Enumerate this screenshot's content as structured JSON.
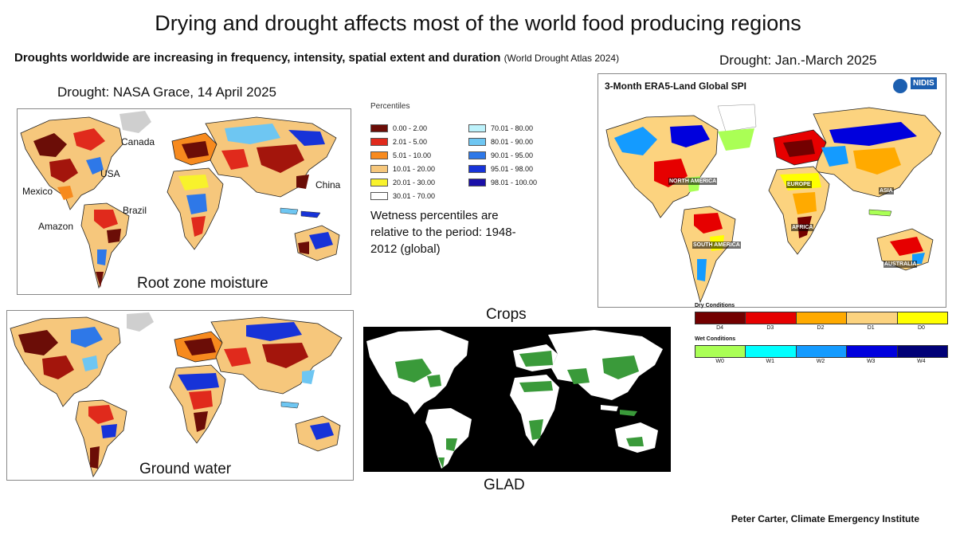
{
  "title": "Drying and drought affects most of the world food producing regions",
  "subtitle": {
    "main": "Droughts worldwide are increasing in frequency, intensity, spatial extent and duration",
    "source": "(World Drought Atlas 2024)"
  },
  "grace": {
    "heading": "Drought: NASA Grace, 14 April 2025",
    "root_zone_label": "Root zone moisture",
    "ground_water_label": "Ground water",
    "region_labels": [
      "Canada",
      "USA",
      "Mexico",
      "Brazil",
      "Amazon",
      "China"
    ],
    "legend": {
      "title": "Percentiles",
      "items": [
        {
          "range": "0.00 - 2.00",
          "color": "#6b0d07"
        },
        {
          "range": "2.01 - 5.00",
          "color": "#e02a1c"
        },
        {
          "range": "5.01 - 10.00",
          "color": "#f78a1e"
        },
        {
          "range": "10.01 - 20.00",
          "color": "#f6c77c"
        },
        {
          "range": "20.01 - 30.00",
          "color": "#f8f22c"
        },
        {
          "range": "30.01 - 70.00",
          "color": "#ffffff"
        },
        {
          "range": "70.01 - 80.00",
          "color": "#bdf2fb"
        },
        {
          "range": "80.01 - 90.00",
          "color": "#6ec6f2"
        },
        {
          "range": "90.01 - 95.00",
          "color": "#2e78e8"
        },
        {
          "range": "95.01 - 98.00",
          "color": "#1733d8"
        },
        {
          "range": "98.01 - 100.00",
          "color": "#1a0fa8"
        }
      ]
    },
    "note": "Wetness percentiles are relative to the period: 1948-2012 (global)"
  },
  "spi": {
    "heading": "Drought: Jan.-March 2025",
    "map_title": "3-Month ERA5-Land Global SPI",
    "logo_text": "NIDIS",
    "continent_labels": [
      "NORTH AMERICA",
      "EUROPE",
      "ASIA",
      "AFRICA",
      "SOUTH AMERICA",
      "AUSTRALIA"
    ],
    "dry": {
      "title": "Dry Conditions",
      "classes": [
        {
          "label": "D4",
          "color": "#730000"
        },
        {
          "label": "D3",
          "color": "#e60000"
        },
        {
          "label": "D2",
          "color": "#ffaa00"
        },
        {
          "label": "D1",
          "color": "#fcd37f"
        },
        {
          "label": "D0",
          "color": "#ffff00"
        }
      ]
    },
    "wet": {
      "title": "Wet Conditions",
      "classes": [
        {
          "label": "W0",
          "color": "#aaff55"
        },
        {
          "label": "W1",
          "color": "#01ffff"
        },
        {
          "label": "W2",
          "color": "#149bff"
        },
        {
          "label": "W3",
          "color": "#0000dd"
        },
        {
          "label": "W4",
          "color": "#000077"
        }
      ]
    }
  },
  "crops": {
    "heading": "Crops",
    "source_label": "GLAD"
  },
  "credit": "Peter Carter, Climate Emergency Institute"
}
